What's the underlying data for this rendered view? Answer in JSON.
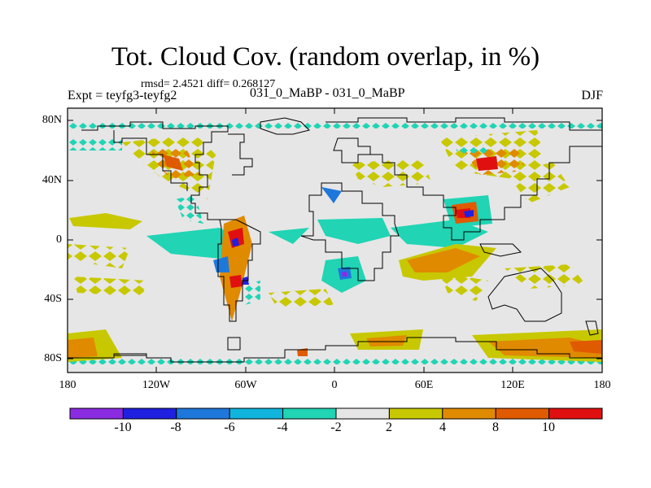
{
  "title": "Tot. Cloud Cov. (random overlap, in %)",
  "stats": "rmsd= 2.4521 diff= 0.268127",
  "experiment": "Expt = teyfg3-teyfg2",
  "cases": "031_0_MaBP - 031_0_MaBP",
  "season": "DJF",
  "lat_labels": [
    "80N",
    "40N",
    "0",
    "40S",
    "80S"
  ],
  "lon_labels": [
    "180",
    "120W",
    "60W",
    "0",
    "60E",
    "120E",
    "180"
  ],
  "colorbar": {
    "labels": [
      "-10",
      "-8",
      "-6",
      "-4",
      "-2",
      "2",
      "4",
      "8",
      "10"
    ],
    "colors": [
      "#8a2be2",
      "#2020e0",
      "#1e78dc",
      "#10b4dc",
      "#20d4b4",
      "#e6e6e6",
      "#c8c800",
      "#e08a00",
      "#e05a00",
      "#e01010"
    ]
  },
  "colors": {
    "background": "#e6e6e6",
    "coastline": "#000000"
  }
}
